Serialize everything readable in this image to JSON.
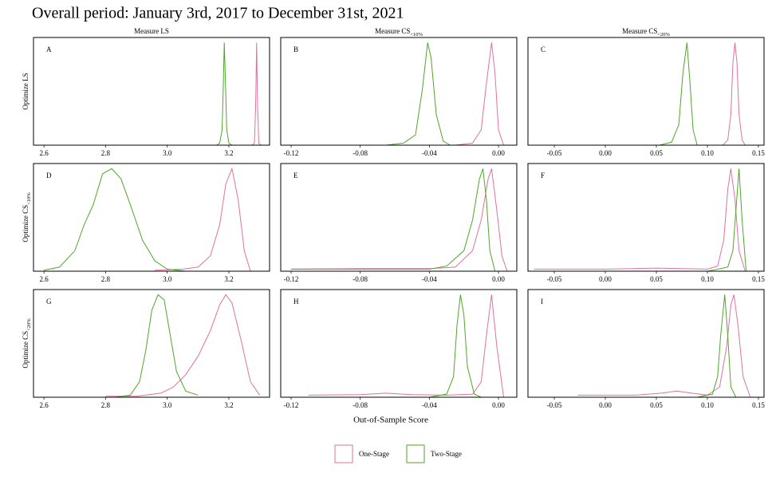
{
  "title": "Overall period: January 3rd, 2017 to December 31st, 2021",
  "columns": [
    {
      "text": "Measure LS"
    },
    {
      "text": "Measure CS",
      "sub": "<10%"
    },
    {
      "text": "Measure CS",
      "sub": "<20%"
    }
  ],
  "rows": [
    {
      "text": "Optimize LS"
    },
    {
      "text": "Optimize CS",
      "sub": "<10%"
    },
    {
      "text": "Optimize CS",
      "sub": "<20%"
    }
  ],
  "x_label": "Out-of-Sample Score",
  "chart_data": [
    {
      "type": "line",
      "label": "A",
      "xlim": [
        2.566,
        3.332
      ],
      "xticks": [
        2.6,
        2.8,
        {
          "value": 3,
          "label": "3.0"
        },
        3.2
      ],
      "ylim": [
        0,
        1.05
      ],
      "series": [
        {
          "name": "One-Stage",
          "color": "#e0719f",
          "x": [
            3.275,
            3.283,
            3.287,
            3.29,
            3.293,
            3.297,
            3.305
          ],
          "values": [
            0,
            0.02,
            0.4,
            1,
            0.4,
            0.02,
            0
          ]
        },
        {
          "name": "Two-Stage",
          "color": "#4fa62a",
          "x": [
            3.16,
            3.17,
            3.178,
            3.182,
            3.185,
            3.189,
            3.193,
            3.2,
            3.21
          ],
          "values": [
            0,
            0.02,
            0.15,
            0.6,
            1,
            0.6,
            0.15,
            0.02,
            0
          ]
        }
      ]
    },
    {
      "type": "line",
      "label": "B",
      "xlim": [
        -0.126,
        0.0106
      ],
      "xticks": [
        -0.12,
        -0.08,
        -0.04,
        {
          "value": 0,
          "label": "0.00"
        }
      ],
      "ylim": [
        0,
        1.05
      ],
      "series": [
        {
          "name": "One-Stage",
          "color": "#e0719f",
          "x": [
            -0.025,
            -0.015,
            -0.01,
            -0.007,
            -0.004,
            -0.002,
            0,
            0.003
          ],
          "values": [
            0,
            0.02,
            0.15,
            0.6,
            1,
            0.7,
            0.15,
            0
          ]
        },
        {
          "name": "Two-Stage",
          "color": "#4fa62a",
          "x": [
            -0.065,
            -0.055,
            -0.048,
            -0.044,
            -0.041,
            -0.039,
            -0.036,
            -0.032,
            -0.028
          ],
          "values": [
            0,
            0.02,
            0.1,
            0.55,
            1,
            0.85,
            0.3,
            0.04,
            0
          ]
        }
      ]
    },
    {
      "type": "line",
      "label": "C",
      "xlim": [
        -0.0758,
        0.1555
      ],
      "xticks": [
        -0.05,
        {
          "value": 0,
          "label": "0.00"
        },
        0.05,
        {
          "value": 0.1,
          "label": "0.10"
        },
        0.15
      ],
      "ylim": [
        0,
        1.05
      ],
      "series": [
        {
          "name": "One-Stage",
          "color": "#e0719f",
          "x": [
            0.115,
            0.12,
            0.123,
            0.125,
            0.127,
            0.129,
            0.131,
            0.134,
            0.137
          ],
          "values": [
            0,
            0.05,
            0.3,
            0.8,
            1,
            0.8,
            0.3,
            0.05,
            0
          ]
        },
        {
          "name": "Two-Stage",
          "color": "#4fa62a",
          "x": [
            0.053,
            0.065,
            0.072,
            0.076,
            0.08,
            0.083,
            0.086,
            0.09
          ],
          "values": [
            0,
            0.03,
            0.2,
            0.7,
            1,
            0.6,
            0.15,
            0
          ]
        }
      ]
    },
    {
      "type": "line",
      "label": "D",
      "xlim": [
        2.566,
        3.332
      ],
      "xticks": [
        2.6,
        2.8,
        {
          "value": 3,
          "label": "3.0"
        },
        3.2
      ],
      "ylim": [
        0,
        1.05
      ],
      "series": [
        {
          "name": "One-Stage",
          "color": "#e0719f",
          "x": [
            2.96,
            3.05,
            3.1,
            3.14,
            3.17,
            3.19,
            3.21,
            3.23,
            3.25,
            3.27
          ],
          "values": [
            0.01,
            0.02,
            0.04,
            0.15,
            0.45,
            0.85,
            1,
            0.7,
            0.2,
            0
          ]
        },
        {
          "name": "Two-Stage",
          "color": "#4fa62a",
          "x": [
            2.6,
            2.65,
            2.7,
            2.73,
            2.76,
            2.79,
            2.82,
            2.85,
            2.88,
            2.92,
            2.96,
            3.0,
            3.06
          ],
          "values": [
            0.01,
            0.04,
            0.2,
            0.45,
            0.65,
            0.95,
            1,
            0.9,
            0.65,
            0.3,
            0.1,
            0.02,
            0
          ]
        }
      ]
    },
    {
      "type": "line",
      "label": "E",
      "xlim": [
        -0.126,
        0.0106
      ],
      "xticks": [
        -0.12,
        -0.08,
        -0.04,
        {
          "value": 0,
          "label": "0.00"
        }
      ],
      "ylim": [
        0,
        1.05
      ],
      "series": [
        {
          "name": "One-Stage",
          "color": "#e0719f",
          "x": [
            -0.12,
            -0.08,
            -0.04,
            -0.025,
            -0.015,
            -0.01,
            -0.006,
            -0.004,
            -0.001,
            0.002,
            0.005
          ],
          "values": [
            0.02,
            0.025,
            0.025,
            0.04,
            0.2,
            0.5,
            0.9,
            1,
            0.6,
            0.15,
            0
          ]
        },
        {
          "name": "Two-Stage",
          "color": "#4fa62a",
          "x": [
            -0.12,
            -0.08,
            -0.04,
            -0.03,
            -0.02,
            -0.015,
            -0.011,
            -0.009,
            -0.007,
            -0.005,
            -0.002
          ],
          "values": [
            0.02,
            0.02,
            0.02,
            0.05,
            0.2,
            0.5,
            0.9,
            1,
            0.7,
            0.2,
            0
          ]
        }
      ]
    },
    {
      "type": "line",
      "label": "F",
      "xlim": [
        -0.0758,
        0.1555
      ],
      "xticks": [
        -0.05,
        {
          "value": 0,
          "label": "0.00"
        },
        0.05,
        {
          "value": 0.1,
          "label": "0.10"
        },
        0.15
      ],
      "ylim": [
        0,
        1.05
      ],
      "series": [
        {
          "name": "One-Stage",
          "color": "#e0719f",
          "x": [
            -0.07,
            0,
            0.05,
            0.1,
            0.11,
            0.116,
            0.12,
            0.123,
            0.127,
            0.131,
            0.137
          ],
          "values": [
            0.02,
            0.02,
            0.03,
            0.02,
            0.05,
            0.3,
            0.8,
            1,
            0.7,
            0.2,
            0
          ]
        },
        {
          "name": "Two-Stage",
          "color": "#4fa62a",
          "x": [
            0.1,
            0.12,
            0.125,
            0.128,
            0.131,
            0.134,
            0.138
          ],
          "values": [
            0,
            0.04,
            0.2,
            0.6,
            1,
            0.5,
            0
          ]
        }
      ]
    },
    {
      "type": "line",
      "label": "G",
      "xlim": [
        2.566,
        3.332
      ],
      "xticks": [
        2.6,
        2.8,
        {
          "value": 3,
          "label": "3.0"
        },
        3.2
      ],
      "ylim": [
        0,
        1.05
      ],
      "series": [
        {
          "name": "One-Stage",
          "color": "#e0719f",
          "x": [
            2.8,
            2.9,
            2.98,
            3.02,
            3.06,
            3.1,
            3.14,
            3.17,
            3.19,
            3.21,
            3.24,
            3.27,
            3.3
          ],
          "values": [
            0.01,
            0.01,
            0.04,
            0.1,
            0.22,
            0.4,
            0.65,
            0.9,
            1,
            0.92,
            0.55,
            0.15,
            0.02
          ]
        },
        {
          "name": "Two-Stage",
          "color": "#4fa62a",
          "x": [
            2.83,
            2.88,
            2.91,
            2.93,
            2.95,
            2.97,
            2.99,
            3.01,
            3.03,
            3.06,
            3.1
          ],
          "values": [
            0,
            0.02,
            0.15,
            0.45,
            0.85,
            1,
            0.95,
            0.6,
            0.25,
            0.06,
            0.02
          ]
        }
      ]
    },
    {
      "type": "line",
      "label": "H",
      "xlim": [
        -0.126,
        0.0106
      ],
      "xticks": [
        -0.12,
        -0.08,
        -0.04,
        {
          "value": 0,
          "label": "0.00"
        }
      ],
      "ylim": [
        0,
        1.05
      ],
      "series": [
        {
          "name": "One-Stage",
          "color": "#e0719f",
          "x": [
            -0.11,
            -0.08,
            -0.065,
            -0.05,
            -0.03,
            -0.015,
            -0.01,
            -0.007,
            -0.004,
            -0.001,
            0.003
          ],
          "values": [
            0.02,
            0.025,
            0.04,
            0.025,
            0.02,
            0.03,
            0.15,
            0.6,
            1,
            0.5,
            0
          ]
        },
        {
          "name": "Two-Stage",
          "color": "#4fa62a",
          "x": [
            -0.04,
            -0.03,
            -0.026,
            -0.024,
            -0.022,
            -0.02,
            -0.018,
            -0.014,
            -0.01
          ],
          "values": [
            0,
            0.03,
            0.2,
            0.7,
            1,
            0.8,
            0.3,
            0.03,
            0
          ]
        }
      ]
    },
    {
      "type": "line",
      "label": "I",
      "xlim": [
        -0.0758,
        0.1555
      ],
      "xticks": [
        -0.05,
        {
          "value": 0,
          "label": "0.00"
        },
        0.05,
        {
          "value": 0.1,
          "label": "0.10"
        },
        0.15
      ],
      "ylim": [
        0,
        1.05
      ],
      "series": [
        {
          "name": "One-Stage",
          "color": "#e0719f",
          "x": [
            -0.027,
            0.03,
            0.055,
            0.07,
            0.085,
            0.1,
            0.112,
            0.119,
            0.123,
            0.126,
            0.13,
            0.135,
            0.142
          ],
          "values": [
            0.02,
            0.02,
            0.04,
            0.06,
            0.04,
            0.02,
            0.1,
            0.5,
            0.9,
            1,
            0.7,
            0.2,
            0
          ]
        },
        {
          "name": "Two-Stage",
          "color": "#4fa62a",
          "x": [
            0.09,
            0.105,
            0.11,
            0.113,
            0.117,
            0.12,
            0.123,
            0.128
          ],
          "values": [
            0,
            0.03,
            0.2,
            0.6,
            1,
            0.6,
            0.1,
            0
          ]
        }
      ]
    }
  ]
}
